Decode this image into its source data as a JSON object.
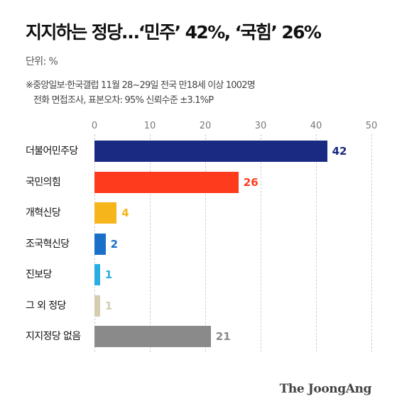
{
  "chart_data": {
    "type": "bar",
    "orientation": "horizontal",
    "title": "지지하는 정당…‘민주’ 42%, ‘국힘’ 26%",
    "unit_label": "단위: %",
    "note_lines": [
      "※중앙일보·한국갤럽 11월 28~29일 전국 만18세 이상 1002명",
      "전화 면접조사, 표본오차: 95% 신뢰수준 ±3.1%P"
    ],
    "xlim": [
      0,
      50
    ],
    "ticks": [
      0,
      10,
      20,
      30,
      40,
      50
    ],
    "grid": true,
    "categories": [
      "더불어민주당",
      "국민의힘",
      "개혁신당",
      "조국혁신당",
      "진보당",
      "그 외 정당",
      "지지정당 없음"
    ],
    "values": [
      42,
      26,
      4,
      2,
      1,
      1,
      21
    ],
    "colors": [
      "#1a2a83",
      "#ff3b1d",
      "#f5b51b",
      "#1a6fc8",
      "#29aee3",
      "#d4cdb2",
      "#8a8a8a"
    ]
  },
  "footer": {
    "brand": "The JoongAng"
  }
}
